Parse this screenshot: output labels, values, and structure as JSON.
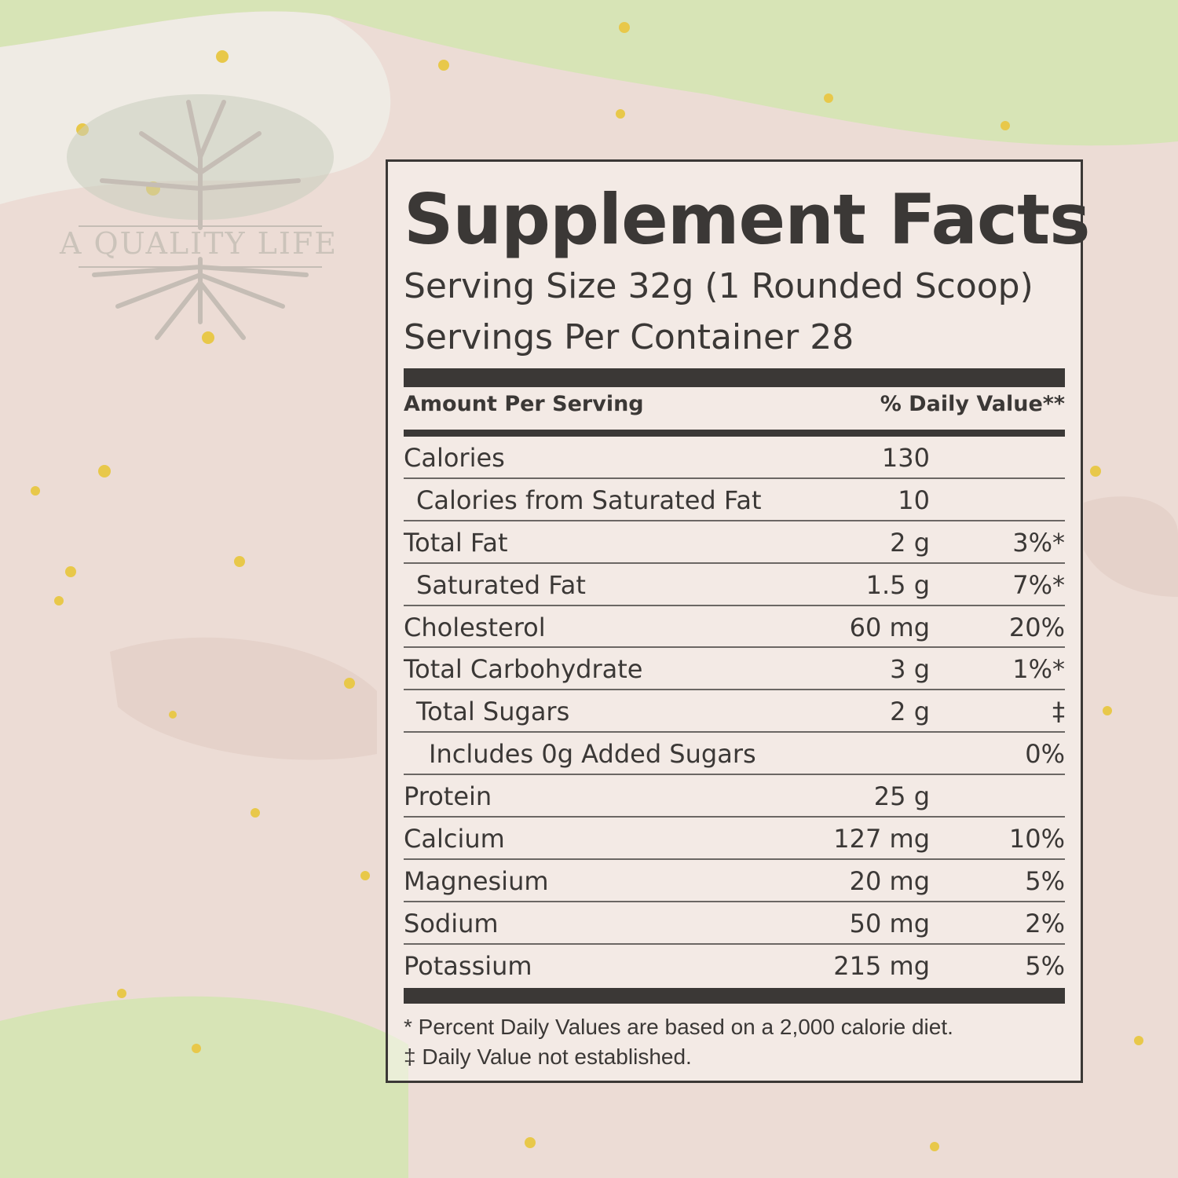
{
  "brand": {
    "logo_text": "A QUALITY LIFE"
  },
  "colors": {
    "background": "#ecdcd5",
    "green_patch": "#d7e4b6",
    "ink": "#3b3836",
    "gold_flake": "#e8c84a"
  },
  "facts": {
    "title": "Supplement Facts",
    "serving_size": "Serving Size 32g (1 Rounded Scoop)",
    "servings_per_container": "Servings Per Container  28",
    "header_left": "Amount Per Serving",
    "header_right": "% Daily Value**",
    "rows": [
      {
        "name": "Calories",
        "amount": "130",
        "dv": ""
      },
      {
        "name": "Calories from Saturated Fat",
        "amount": "10",
        "dv": ""
      },
      {
        "name": "Total Fat",
        "amount": "2 g",
        "dv": "3%*"
      },
      {
        "name": "Saturated Fat",
        "amount": "1.5 g",
        "dv": "7%*"
      },
      {
        "name": "Cholesterol",
        "amount": "60 mg",
        "dv": "20%"
      },
      {
        "name": "Total Carbohydrate",
        "amount": "3 g",
        "dv": "1%*"
      },
      {
        "name": "Total Sugars",
        "amount": "2 g",
        "dv": "‡"
      },
      {
        "name": "Includes 0g Added Sugars",
        "amount": "",
        "dv": "0%"
      },
      {
        "name": "Protein",
        "amount": "25 g",
        "dv": ""
      },
      {
        "name": "Calcium",
        "amount": "127 mg",
        "dv": "10%"
      },
      {
        "name": "Magnesium",
        "amount": "20 mg",
        "dv": "5%"
      },
      {
        "name": "Sodium",
        "amount": "50 mg",
        "dv": "2%"
      },
      {
        "name": "Potassium",
        "amount": "215 mg",
        "dv": "5%"
      }
    ],
    "footnote_1": "* Percent Daily Values are based on a 2,000 calorie diet.",
    "footnote_2": "‡ Daily Value not established."
  }
}
